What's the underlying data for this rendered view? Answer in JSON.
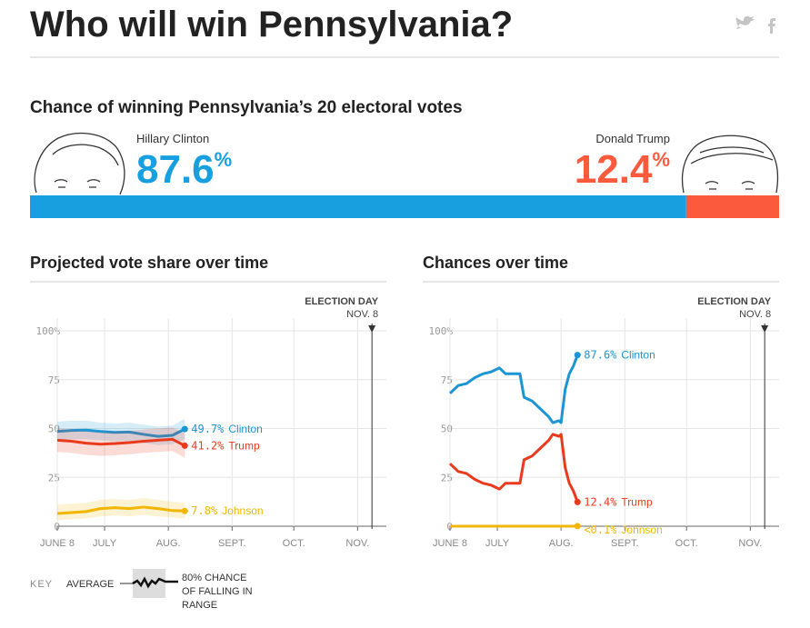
{
  "header": {
    "title": "Who will win Pennsylvania?"
  },
  "forecast": {
    "title": "Chance of winning Pennsylvania’s 20 electoral votes",
    "unit": "%",
    "candidates": [
      {
        "name": "Hillary Clinton",
        "chance": 87.6,
        "color": "#179fe0"
      },
      {
        "name": "Donald Trump",
        "chance": 12.4,
        "color": "#fc5a3d"
      }
    ]
  },
  "chart_data": [
    {
      "type": "line",
      "title": "Projected vote share over time",
      "x": [
        "06-08",
        "06-15",
        "06-22",
        "06-29",
        "07-06",
        "07-13",
        "07-20",
        "07-27",
        "08-03",
        "08-09"
      ],
      "xlim": [
        "06-08",
        "11-15"
      ],
      "xticks": [
        {
          "value": "06-08",
          "label": "JUNE 8"
        },
        {
          "value": "07-01",
          "label": "JULY"
        },
        {
          "value": "08-01",
          "label": "AUG."
        },
        {
          "value": "09-01",
          "label": "SEPT."
        },
        {
          "value": "10-01",
          "label": "OCT."
        },
        {
          "value": "11-01",
          "label": "NOV."
        }
      ],
      "ylim": [
        0,
        100
      ],
      "yticks": [
        {
          "value": 100,
          "label": "100%"
        },
        75,
        50,
        25,
        0
      ],
      "grid": true,
      "annotation": {
        "label": "ELECTION DAY",
        "date_label": "NOV. 8",
        "x": "11-08"
      },
      "series": [
        {
          "name": "Clinton",
          "color": "#1c95d3",
          "values": [
            48.5,
            49,
            49.2,
            48.5,
            48,
            48.2,
            47,
            46,
            46.5,
            49.7
          ],
          "low": [
            44,
            44.5,
            44.5,
            44,
            43.5,
            43.5,
            42.5,
            41.5,
            42,
            44.5
          ],
          "high": [
            53.5,
            54,
            54,
            53,
            52.5,
            53,
            52,
            51,
            51.5,
            55
          ],
          "label": "49.7%"
        },
        {
          "name": "Trump",
          "color": "#ea3a1d",
          "values": [
            44,
            43.5,
            42.5,
            42,
            42.3,
            42.8,
            43.5,
            44,
            44.5,
            41.2
          ],
          "low": [
            38,
            37.5,
            36.5,
            36,
            36.3,
            36.8,
            37.5,
            38,
            38.5,
            35
          ],
          "high": [
            50,
            49.5,
            48.5,
            48,
            48.3,
            48.8,
            49.5,
            50,
            50.5,
            47.5
          ],
          "label": "41.2%"
        },
        {
          "name": "Johnson",
          "color": "#f2b600",
          "values": [
            6.5,
            7,
            7.5,
            9,
            9.5,
            9,
            9.8,
            9,
            8,
            7.8
          ],
          "low": [
            3,
            3.5,
            4,
            5,
            5.5,
            5,
            5.8,
            5,
            4.5,
            4
          ],
          "high": [
            11,
            11.5,
            12,
            13.5,
            14,
            13.5,
            14.5,
            13.5,
            12.5,
            12
          ],
          "label": "7.8%"
        }
      ]
    },
    {
      "type": "line",
      "title": "Chances over time",
      "x": [
        "06-08",
        "06-12",
        "06-16",
        "06-20",
        "06-24",
        "06-28",
        "07-02",
        "07-05",
        "07-09",
        "07-12",
        "07-14",
        "07-18",
        "07-22",
        "07-26",
        "07-28",
        "07-31",
        "08-01",
        "08-03",
        "08-05",
        "08-07",
        "08-09"
      ],
      "xlim": [
        "06-08",
        "11-15"
      ],
      "xticks": [
        {
          "value": "06-08",
          "label": "JUNE 8"
        },
        {
          "value": "07-01",
          "label": "JULY"
        },
        {
          "value": "08-01",
          "label": "AUG."
        },
        {
          "value": "09-01",
          "label": "SEPT."
        },
        {
          "value": "10-01",
          "label": "OCT."
        },
        {
          "value": "11-01",
          "label": "NOV."
        }
      ],
      "ylim": [
        0,
        100
      ],
      "yticks": [
        {
          "value": 100,
          "label": "100%"
        },
        75,
        50,
        25,
        0
      ],
      "grid": true,
      "annotation": {
        "label": "ELECTION DAY",
        "date_label": "NOV. 8",
        "x": "11-08"
      },
      "series": [
        {
          "name": "Clinton",
          "color": "#1c95d3",
          "values": [
            68,
            72,
            73,
            76,
            78,
            79,
            81,
            78,
            78,
            78,
            66,
            64,
            60,
            56,
            53,
            54,
            53,
            70,
            78,
            82,
            87.6
          ],
          "label": "87.6%"
        },
        {
          "name": "Trump",
          "color": "#ea3a1d",
          "values": [
            32,
            28,
            27,
            24,
            22,
            21,
            19,
            22,
            22,
            22,
            34,
            36,
            40,
            44,
            47,
            46,
            47,
            30,
            22,
            18,
            12.4
          ],
          "label": "12.4%"
        },
        {
          "name": "Johnson",
          "color": "#f2b600",
          "values": [
            0,
            0,
            0,
            0,
            0,
            0,
            0,
            0,
            0,
            0,
            0,
            0,
            0,
            0,
            0,
            0,
            0,
            0,
            0,
            0,
            0.05
          ],
          "label": "<0.1%"
        }
      ]
    }
  ],
  "key": {
    "label": "KEY",
    "average": "AVERAGE",
    "range": [
      "80% CHANCE",
      "OF FALLING IN",
      "RANGE"
    ]
  }
}
